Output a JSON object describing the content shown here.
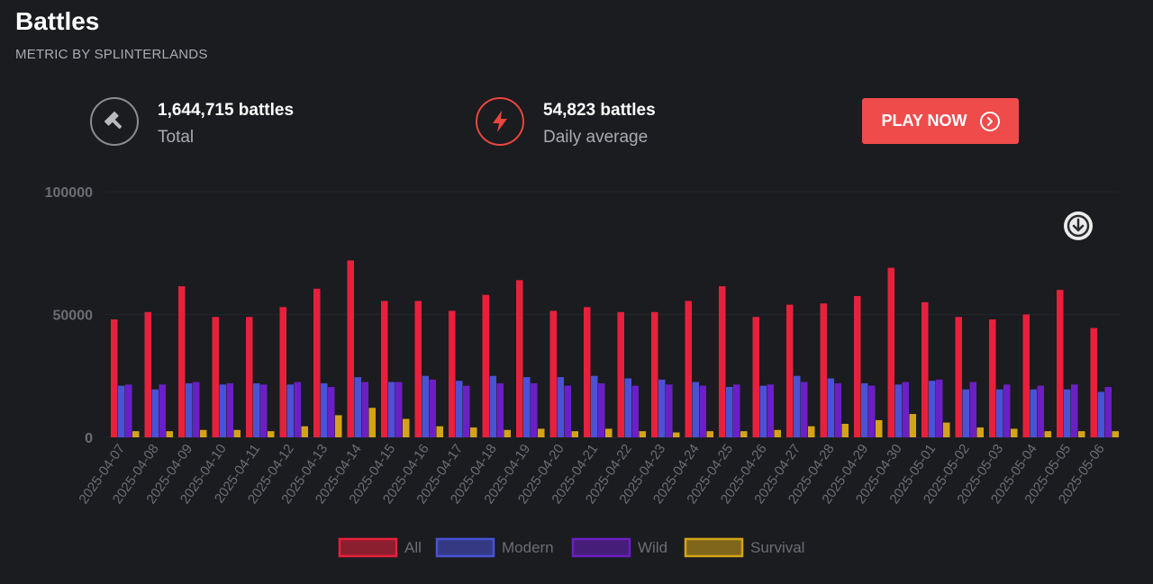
{
  "header": {
    "title": "Battles",
    "subtitle": "METRIC BY SPLINTERLANDS"
  },
  "stats": {
    "total": {
      "value": "1,644,715 battles",
      "label": "Total",
      "icon": "hammer-icon"
    },
    "daily": {
      "value": "54,823 battles",
      "label": "Daily average",
      "icon": "lightning-icon"
    }
  },
  "play_button": {
    "label": "PLAY NOW",
    "icon": "chevron-right-circle-icon"
  },
  "download": {
    "icon": "download-icon"
  },
  "colors": {
    "all": "#e8203c",
    "modern": "#4a52d6",
    "wild": "#6b1fc4",
    "survival": "#d4a417",
    "accent": "#ef4b4b"
  },
  "chart_data": {
    "type": "bar",
    "title": "",
    "xlabel": "",
    "ylabel": "",
    "ylim": [
      0,
      100000
    ],
    "yticks": [
      "0",
      "50000",
      "100000"
    ],
    "categories": [
      "2025-04-07",
      "2025-04-08",
      "2025-04-09",
      "2025-04-10",
      "2025-04-11",
      "2025-04-12",
      "2025-04-13",
      "2025-04-14",
      "2025-04-15",
      "2025-04-16",
      "2025-04-17",
      "2025-04-18",
      "2025-04-19",
      "2025-04-20",
      "2025-04-21",
      "2025-04-22",
      "2025-04-23",
      "2025-04-24",
      "2025-04-25",
      "2025-04-26",
      "2025-04-27",
      "2025-04-28",
      "2025-04-29",
      "2025-04-30",
      "2025-05-01",
      "2025-05-02",
      "2025-05-03",
      "2025-05-04",
      "2025-05-05",
      "2025-05-06"
    ],
    "series": [
      {
        "name": "All",
        "values": [
          48000,
          51000,
          61500,
          49000,
          49000,
          53000,
          60500,
          72000,
          55500,
          55500,
          51500,
          58000,
          64000,
          51500,
          53000,
          51000,
          51000,
          55500,
          61500,
          49000,
          54000,
          54500,
          57500,
          69000,
          55000,
          49000,
          48000,
          50000,
          60000,
          44500
        ]
      },
      {
        "name": "Modern",
        "values": [
          21000,
          19500,
          22000,
          21500,
          22000,
          21500,
          22000,
          24500,
          22500,
          25000,
          23000,
          25000,
          24500,
          24500,
          25000,
          24000,
          23500,
          22500,
          20500,
          21000,
          25000,
          24000,
          22000,
          21500,
          23000,
          19500,
          19500,
          19500,
          19500,
          18500
        ]
      },
      {
        "name": "Wild",
        "values": [
          21500,
          21500,
          22500,
          22000,
          21500,
          22500,
          20500,
          22500,
          22500,
          23500,
          21000,
          22000,
          22000,
          21000,
          22000,
          21000,
          21500,
          21000,
          21500,
          21500,
          22500,
          22000,
          21000,
          22500,
          23500,
          22500,
          21500,
          21000,
          21500,
          20500
        ]
      },
      {
        "name": "Survival",
        "values": [
          2500,
          2500,
          3000,
          3000,
          2500,
          4500,
          9000,
          12000,
          7500,
          4500,
          4000,
          3000,
          3500,
          2500,
          3500,
          2500,
          2000,
          2500,
          2500,
          3000,
          4500,
          5500,
          7000,
          9500,
          6000,
          4000,
          3500,
          2500,
          2500,
          2500
        ]
      }
    ],
    "legend": [
      "All",
      "Modern",
      "Wild",
      "Survival"
    ],
    "legend_position": "bottom-center"
  }
}
